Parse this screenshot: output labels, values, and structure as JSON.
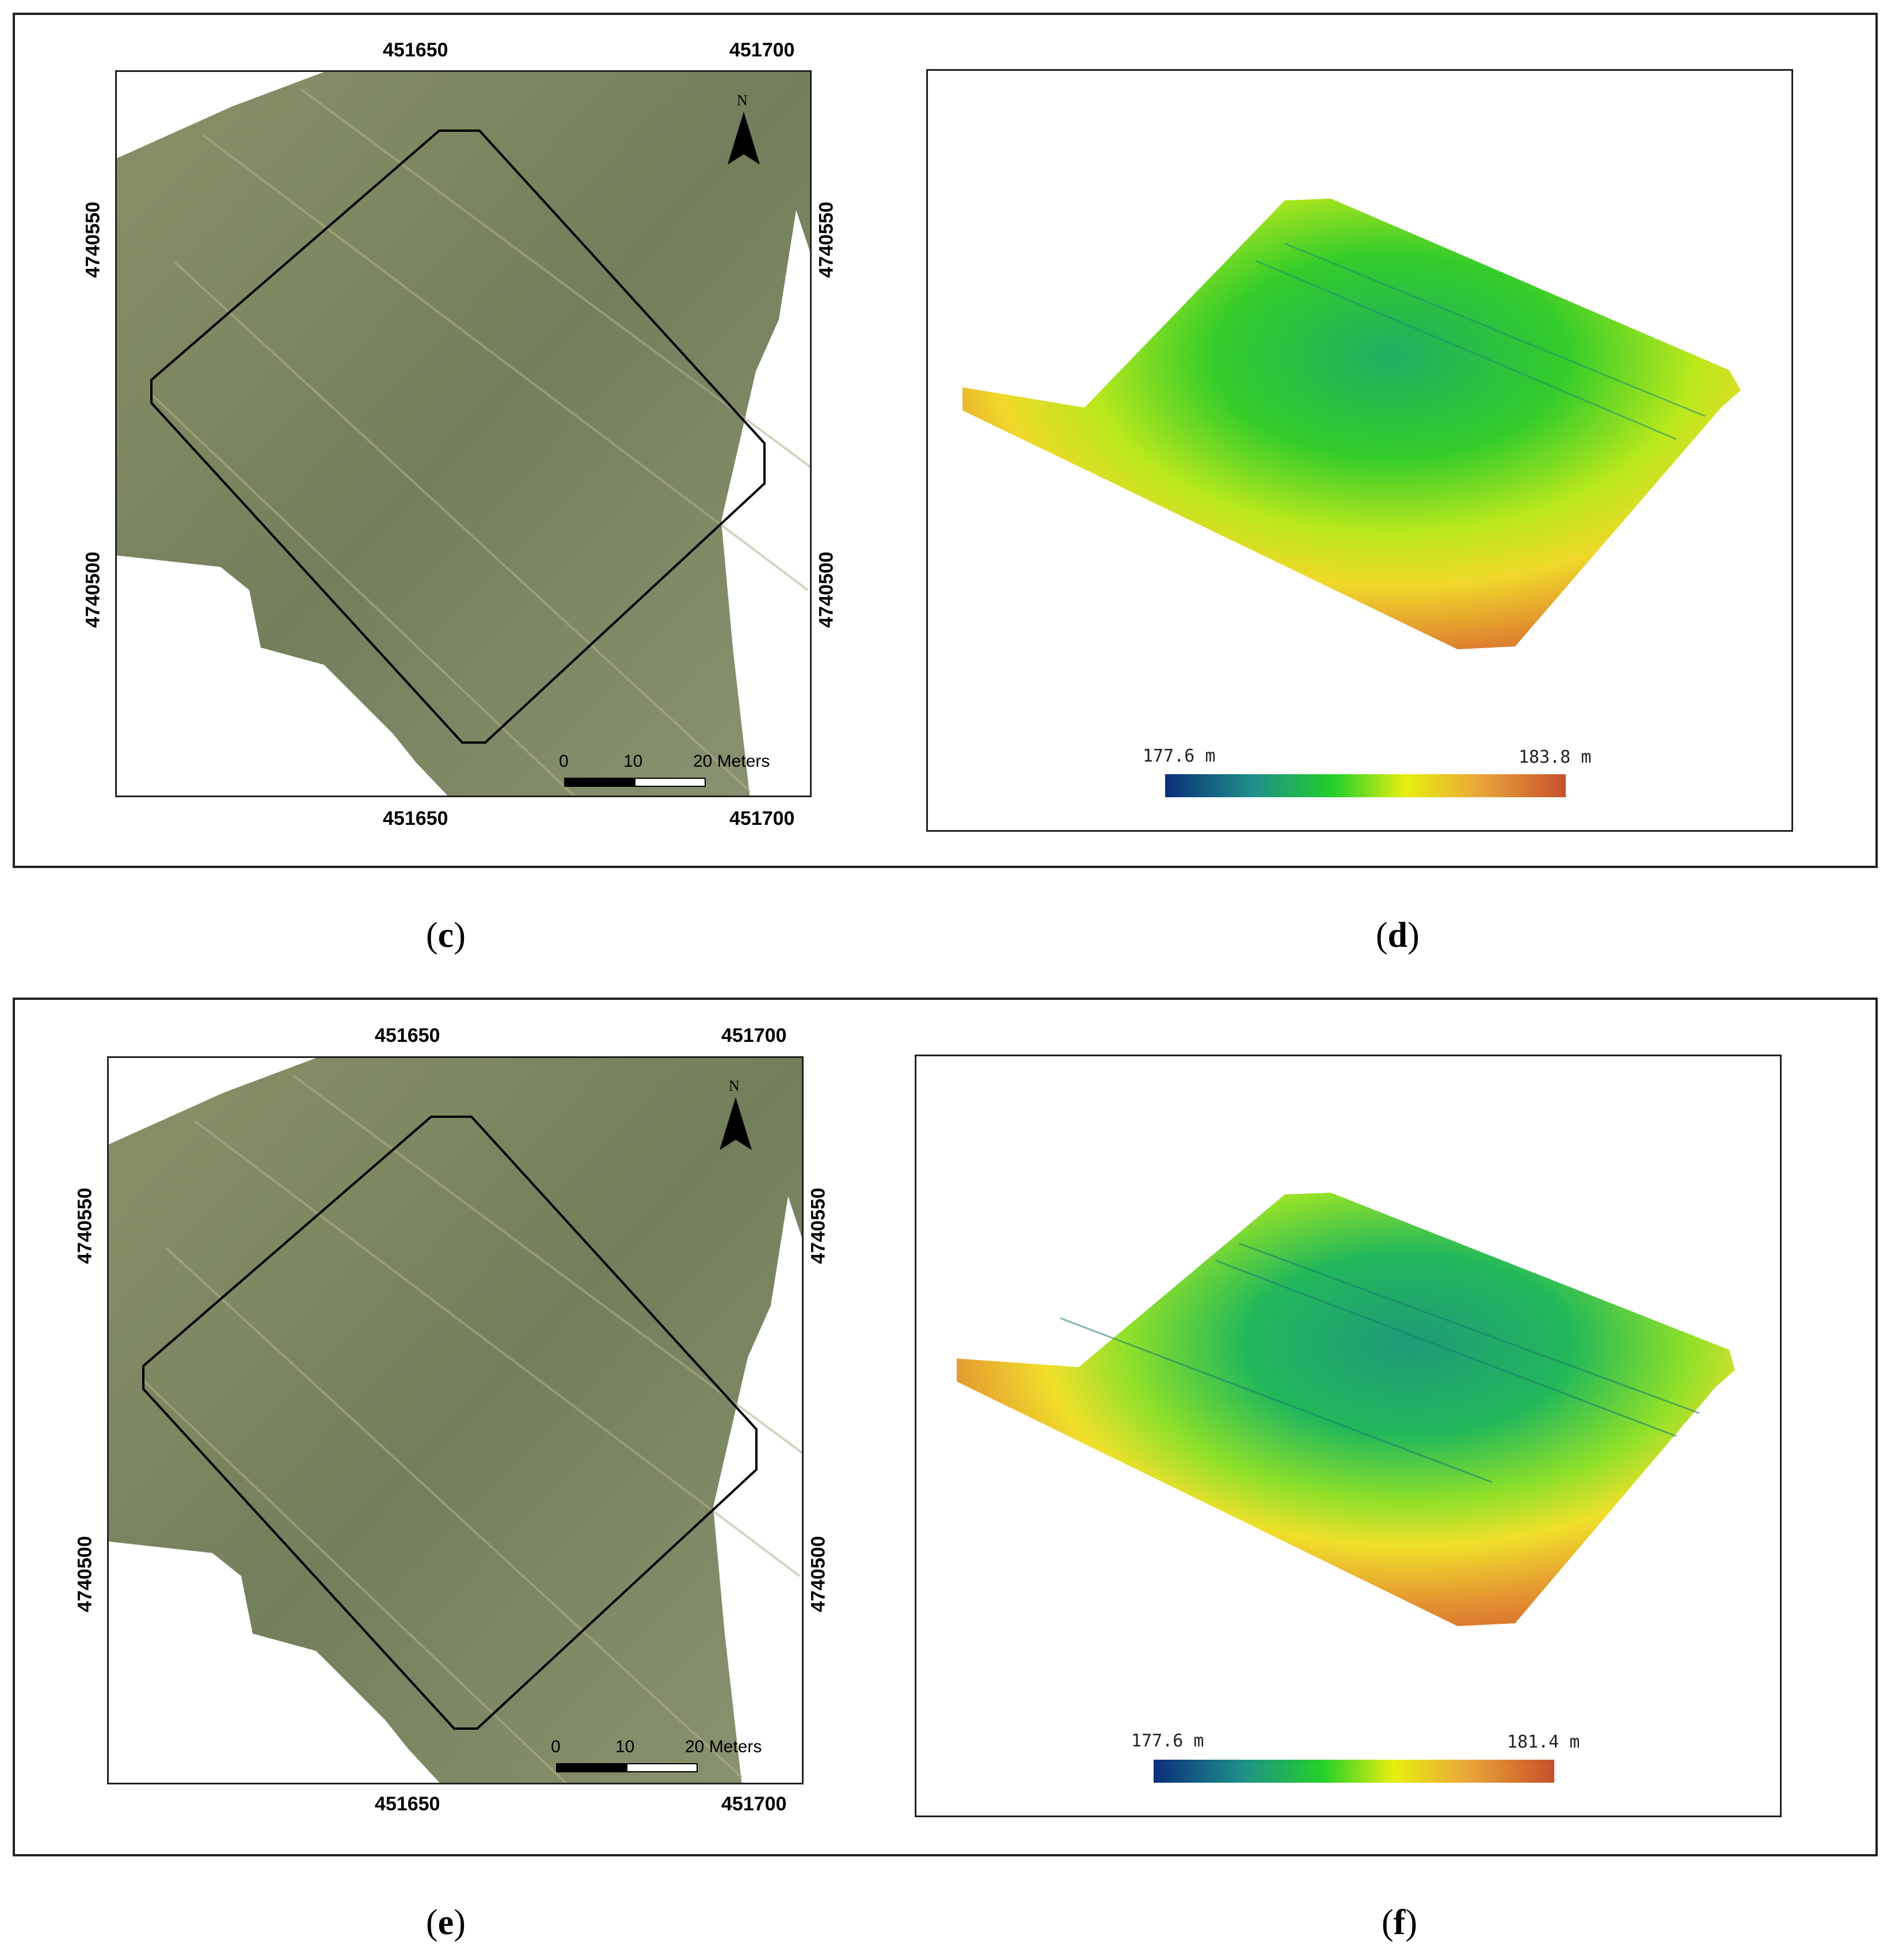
{
  "figure": {
    "rows": [
      {
        "map_panel": {
          "caption_letter": "c",
          "x_top": [
            "451650",
            "451700"
          ],
          "x_bottom": [
            "451650",
            "451700"
          ],
          "y_left": [
            "4740550",
            "4740500"
          ],
          "y_right": [
            "4740550",
            "4740500"
          ],
          "scale_labels": [
            "0",
            "10",
            "20 Meters"
          ],
          "north_label": "N"
        },
        "dem_panel": {
          "caption_letter": "d",
          "legend_min": "177.6  m",
          "legend_max": "183.8  m"
        }
      },
      {
        "map_panel": {
          "caption_letter": "e",
          "x_top": [
            "451650",
            "451700"
          ],
          "x_bottom": [
            "451650",
            "451700"
          ],
          "y_left": [
            "4740550",
            "4740500"
          ],
          "y_right": [
            "4740550",
            "4740500"
          ],
          "scale_labels": [
            "0",
            "10",
            "20 Meters"
          ],
          "north_label": "N"
        },
        "dem_panel": {
          "caption_letter": "f",
          "legend_min": "177.6  m",
          "legend_max": "181.4  m"
        }
      }
    ],
    "caption_parens": [
      "(",
      ")"
    ],
    "colors": {
      "field_green": "#7f8a63",
      "colorbar": [
        "#0a2f7a",
        "#1f8f8a",
        "#22d02a",
        "#e8ee10",
        "#e9a83a",
        "#c8502c"
      ]
    }
  }
}
